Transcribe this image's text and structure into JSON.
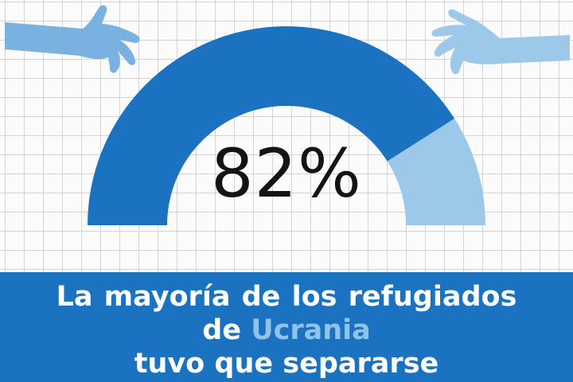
{
  "chart_data": {
    "type": "gauge",
    "value": 82,
    "max": 100,
    "value_label": "82%",
    "colors": {
      "filled": "#1a72c0",
      "remainder": "#9cc8ea"
    }
  },
  "caption": {
    "line1": "La  mayoría de los refugiados",
    "line2_prefix": "de ",
    "line2_highlight": "Ucrania",
    "line3": "tuvo que separarse"
  },
  "illustration": {
    "left_hand": "reaching-hand-icon",
    "right_hand": "reaching-hand-icon",
    "colors": {
      "left_hand": "#79b2e0",
      "right_hand": "#9cc8ea"
    }
  },
  "colors": {
    "banner": "#1a72c0",
    "highlight_text": "#8fc3ea",
    "grid_line": "#d4d4d4"
  }
}
